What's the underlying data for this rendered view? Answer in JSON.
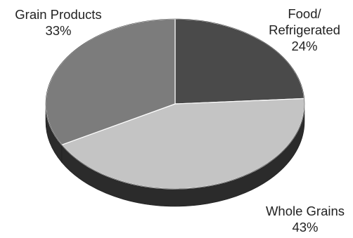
{
  "chart_data": {
    "type": "pie",
    "style": "3d",
    "title": "",
    "slices": [
      {
        "label": "Food/\nRefrigerated",
        "value": 24,
        "value_label": "24%",
        "color": "#4a4a4a"
      },
      {
        "label": "Whole Grains",
        "value": 43,
        "value_label": "43%",
        "color": "#c4c4c4"
      },
      {
        "label": "Grain Products",
        "value": 33,
        "value_label": "33%",
        "color": "#7c7c7c"
      }
    ],
    "legend": "none"
  }
}
